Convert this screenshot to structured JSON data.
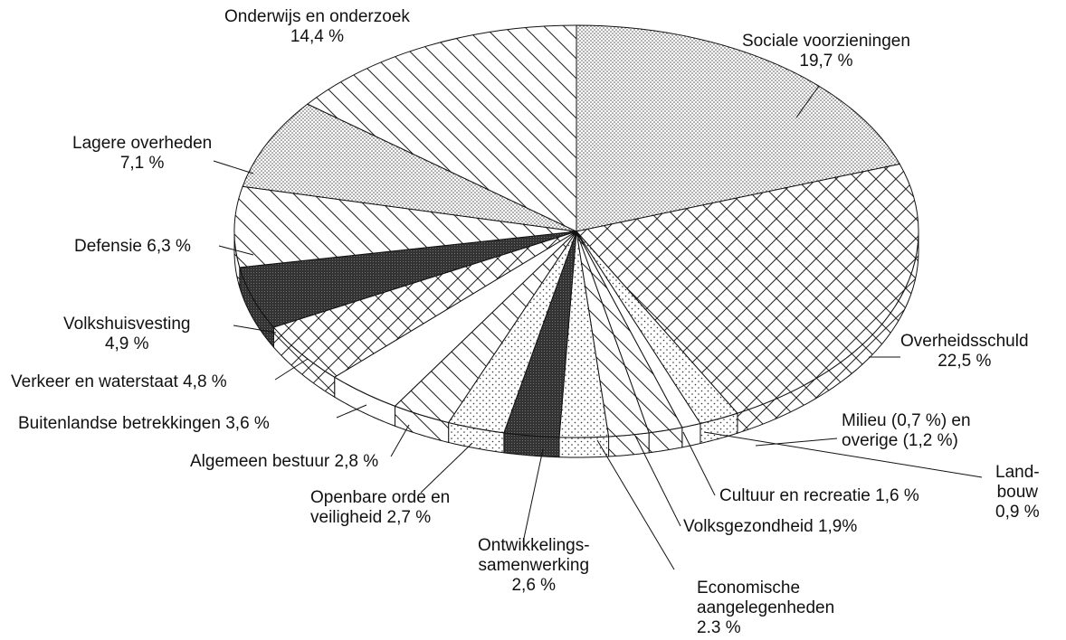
{
  "chart_data": {
    "type": "pie",
    "categories": [
      "Sociale voorzieningen",
      "Overheidsschuld",
      "Milieu (0,7 %) en\noverige (1,2 %)",
      "Land-\nbouw",
      "Cultuur en recreatie",
      "Volksgezondheid",
      "Economische\naangelegenheden",
      "Ontwikkelings-\nsamenwerking",
      "Openbare orde en\nveiligheid",
      "Algemeen bestuur",
      "Buitenlandse betrekkingen",
      "Verkeer en waterstaat",
      "Volkshuisvesting",
      "Defensie",
      "Lagere overheden",
      "Onderwijs en onderzoek"
    ],
    "values": [
      19.7,
      22.5,
      1.9,
      0.9,
      1.6,
      1.9,
      2.3,
      2.6,
      2.7,
      2.8,
      3.6,
      4.8,
      4.9,
      6.3,
      7.1,
      14.4
    ],
    "value_labels": [
      "19,7 %",
      "22,5 %",
      null,
      "0,9 %",
      "1,6 %",
      "1,9%",
      "2.3 %",
      "2,6 %",
      "2,7 %",
      "2,8 %",
      "3,6 %",
      "4,8 %",
      "4,9 %",
      "6,3 %",
      "7,1 %",
      "14,4 %"
    ],
    "colors": [
      "stipple",
      "crosshatch",
      "dots",
      "white",
      "hatch",
      "hatch",
      "dots",
      "dark",
      "dots",
      "hatch",
      "white",
      "crosshatch",
      "dark",
      "hatch",
      "stipple",
      "hatch"
    ]
  }
}
